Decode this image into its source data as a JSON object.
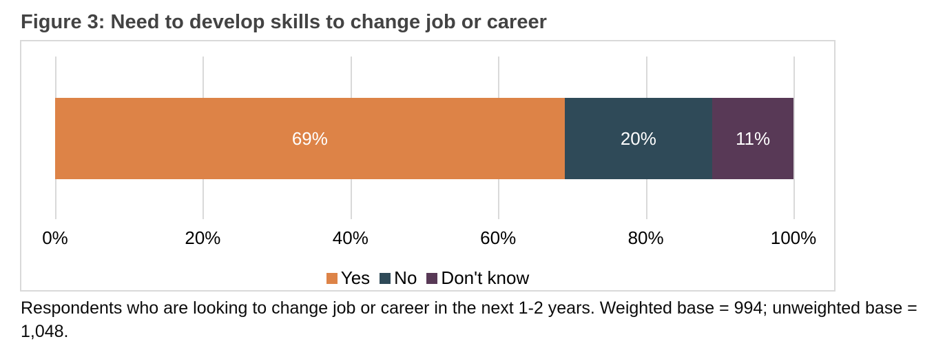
{
  "figure": {
    "title": "Figure 3: Need to develop skills to change job or career",
    "caption": "Respondents who are looking to change job or career in the next 1-2 years. Weighted base = 994; unweighted base = 1,048."
  },
  "colors": {
    "title_text": "#434343",
    "bar_label_text": "#ffffff",
    "gridline": "#d9d9d9",
    "chart_border": "#d9d9d9",
    "yes_orange": "#dd8347",
    "no_teal": "#2f4a58",
    "dont_know_purple": "#583956"
  },
  "chart_data": {
    "type": "bar",
    "variant": "horizontal-stacked",
    "title": "Figure 3: Need to develop skills to change job or career",
    "categories": [
      "Need to develop skills to change job or career"
    ],
    "series": [
      {
        "name": "Yes",
        "value": 69,
        "label": "69%",
        "color": "#dd8347"
      },
      {
        "name": "No",
        "value": 20,
        "label": "20%",
        "color": "#2f4a58"
      },
      {
        "name": "Don't know",
        "value": 11,
        "label": "11%",
        "color": "#583956"
      }
    ],
    "x_ticks": [
      "0%",
      "20%",
      "40%",
      "60%",
      "80%",
      "100%"
    ],
    "x_range": [
      0,
      100
    ],
    "xlabel": "",
    "ylabel": "",
    "grid": true,
    "legend_position": "bottom",
    "footnote": "Respondents who are looking to change job or career in the next 1-2 years. Weighted base = 994; unweighted base = 1,048."
  }
}
